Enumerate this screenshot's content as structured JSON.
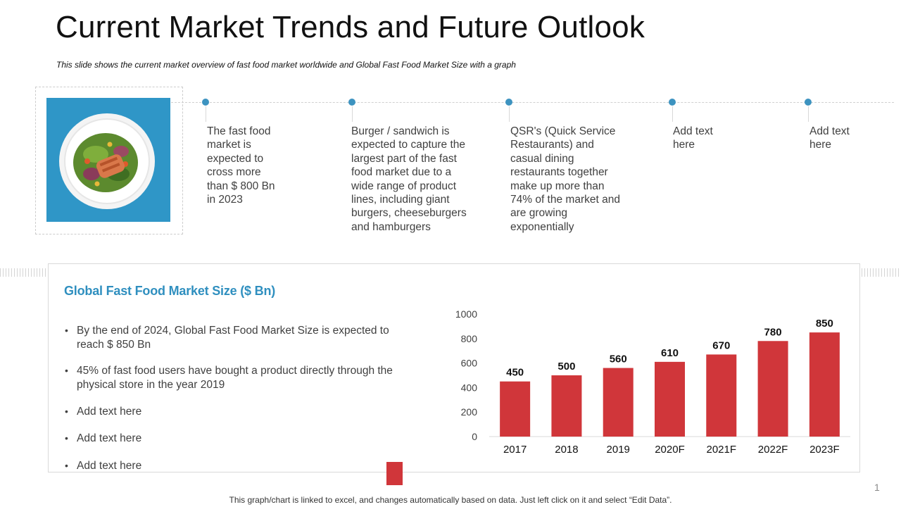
{
  "slide": {
    "title": "Current Market Trends and Future Outlook",
    "subtitle": "This slide shows the current market overview  of fast food market worldwide  and Global Fast Food Market Size with a graph",
    "footnote": "This graph/chart is linked to excel, and changes automatically based on data. Just left click on it and select “Edit Data”.",
    "page_number": "1"
  },
  "timeline": {
    "dot_color": "#3d93c0",
    "items": [
      {
        "lines": [
          "The fast food",
          "market is",
          "expected to",
          "cross more",
          "than $ 800 Bn",
          "in 2023"
        ]
      },
      {
        "lines": [
          "Burger / sandwich is",
          "expected to capture the",
          "largest part of the fast",
          "food market due to a",
          "wide range of product",
          "lines, including giant",
          "burgers, cheeseburgers",
          "and hamburgers"
        ]
      },
      {
        "lines": [
          "QSR's (Quick Service",
          "Restaurants) and",
          "casual dining",
          "restaurants together",
          "make up more than",
          "74% of the market and",
          "are growing",
          "exponentially"
        ]
      },
      {
        "lines": [
          "Add text",
          "here"
        ]
      },
      {
        "lines": [
          "Add text",
          "here"
        ]
      }
    ]
  },
  "image": {
    "icon": "salad-plate-icon",
    "background": "#2f96c7"
  },
  "panel": {
    "title": "Global Fast Food Market Size ($ Bn)",
    "title_color": "#2f8fbf",
    "bullets": [
      {
        "lines": [
          "By the end of 2024, Global Fast Food Market Size is expected to",
          "reach $ 850 Bn"
        ]
      },
      {
        "lines": [
          "45% of fast food users have bought a product directly through the",
          "physical store in the year 2019"
        ]
      },
      {
        "lines": [
          "Add text here"
        ]
      },
      {
        "lines": [
          "Add text here"
        ]
      },
      {
        "lines": [
          "Add text here"
        ]
      }
    ]
  },
  "chart_data": {
    "type": "bar",
    "title": "Global Fast Food Market Size ($ Bn)",
    "categories": [
      "2017",
      "2018",
      "2019",
      "2020F",
      "2021F",
      "2022F",
      "2023F"
    ],
    "values": [
      450,
      500,
      560,
      610,
      670,
      780,
      850
    ],
    "ylim": [
      0,
      1000
    ],
    "yticks": [
      0,
      200,
      400,
      600,
      800,
      1000
    ],
    "xlabel": "",
    "ylabel": "",
    "bar_color": "#d0363a",
    "grid": false,
    "legend": "none"
  }
}
